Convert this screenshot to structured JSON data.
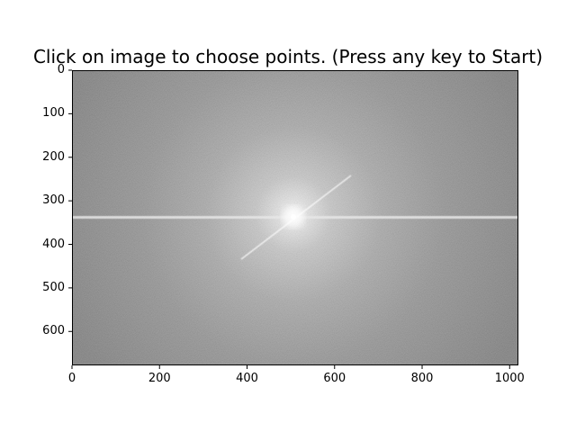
{
  "window": {
    "title": "Click on image to choose points. (Press any key to Start)"
  },
  "figure": {
    "image_description_type": "fft-magnitude-spectrum",
    "x_axis": {
      "ticks": [
        "0",
        "200",
        "400",
        "600",
        "800",
        "1000"
      ],
      "range": [
        0,
        1020
      ]
    },
    "y_axis": {
      "ticks": [
        "0",
        "100",
        "200",
        "300",
        "400",
        "500",
        "600"
      ],
      "range": [
        0,
        678
      ],
      "inverted": true
    },
    "colors": {
      "background_gray": "#7e7e7e",
      "center_glow": "#ffffff",
      "axis": "#000000"
    }
  }
}
